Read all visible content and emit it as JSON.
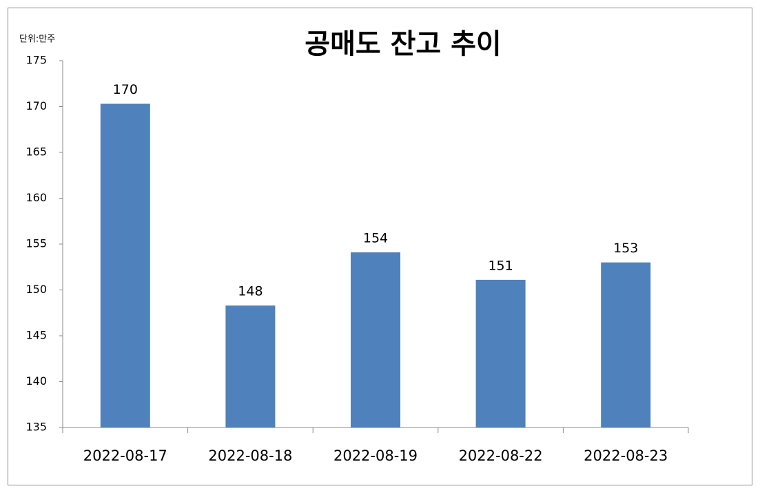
{
  "chart_data": {
    "type": "bar",
    "title": "공매도 잔고 추이",
    "unit_label": "단위:만주",
    "categories": [
      "2022-08-17",
      "2022-08-18",
      "2022-08-19",
      "2022-08-22",
      "2022-08-23"
    ],
    "values": [
      170.3,
      148.3,
      154.1,
      151.1,
      153.0
    ],
    "value_labels": [
      "170",
      "148",
      "154",
      "151",
      "153"
    ],
    "color": "#4f81bd",
    "ylim": [
      135,
      175
    ],
    "yticks": [
      135,
      140,
      145,
      150,
      155,
      160,
      165,
      170,
      175
    ],
    "grid": false
  }
}
